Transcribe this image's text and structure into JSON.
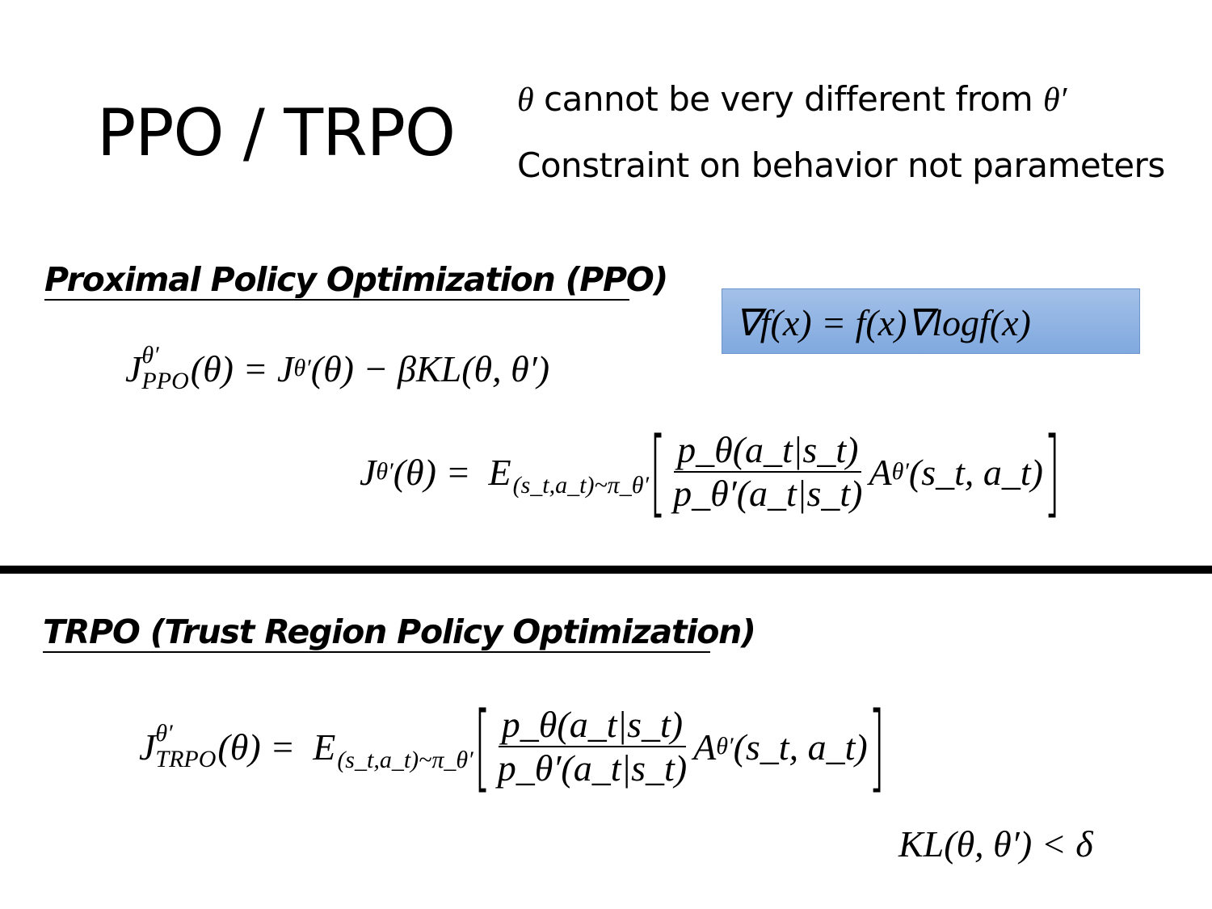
{
  "header": {
    "title": "PPO / TRPO",
    "note1_theta": "θ",
    "note1_text": " cannot be very different from ",
    "note1_theta_prime": "θ′",
    "note2": "Constraint on behavior not parameters"
  },
  "gradient_identity": "∇f(x) = f(x)∇logf(x)",
  "ppo": {
    "heading": "Proximal Policy Optimization (PPO)",
    "formula": {
      "J": "J",
      "sup": "θ′",
      "sub": "PPO",
      "lhs_arg": "(θ) = ",
      "rhs_J": "J",
      "rhs_sup": "θ′",
      "rhs_rest": "(θ) − βKL(θ, θ′)"
    },
    "expectation": {
      "J": "J",
      "sup": "θ′",
      "lhs_arg": "(θ) = ",
      "E": "E",
      "E_sub": "(s_t,a_t)~π_θ′",
      "bracket_open": "[",
      "numerator": "p_θ(a_t|s_t)",
      "denominator": "p_θ′(a_t|s_t)",
      "A": "A",
      "A_sup": "θ′",
      "A_arg": "(s_t, a_t)",
      "bracket_close": "]"
    }
  },
  "trpo": {
    "heading": "TRPO (Trust Region Policy Optimization)",
    "formula": {
      "J": "J",
      "sup": "θ′",
      "sub": "TRPO",
      "lhs_arg": "(θ) = ",
      "E": "E",
      "E_sub": "(s_t,a_t)~π_θ′",
      "bracket_open": "[",
      "numerator": "p_θ(a_t|s_t)",
      "denominator": "p_θ′(a_t|s_t)",
      "A": "A",
      "A_sup": "θ′",
      "A_arg": "(s_t, a_t)",
      "bracket_close": "]"
    },
    "constraint": "KL(θ, θ′) < δ"
  },
  "colors": {
    "box_fill": "#8fb4e3",
    "box_border": "#6d95cc",
    "divider": "#000000"
  }
}
